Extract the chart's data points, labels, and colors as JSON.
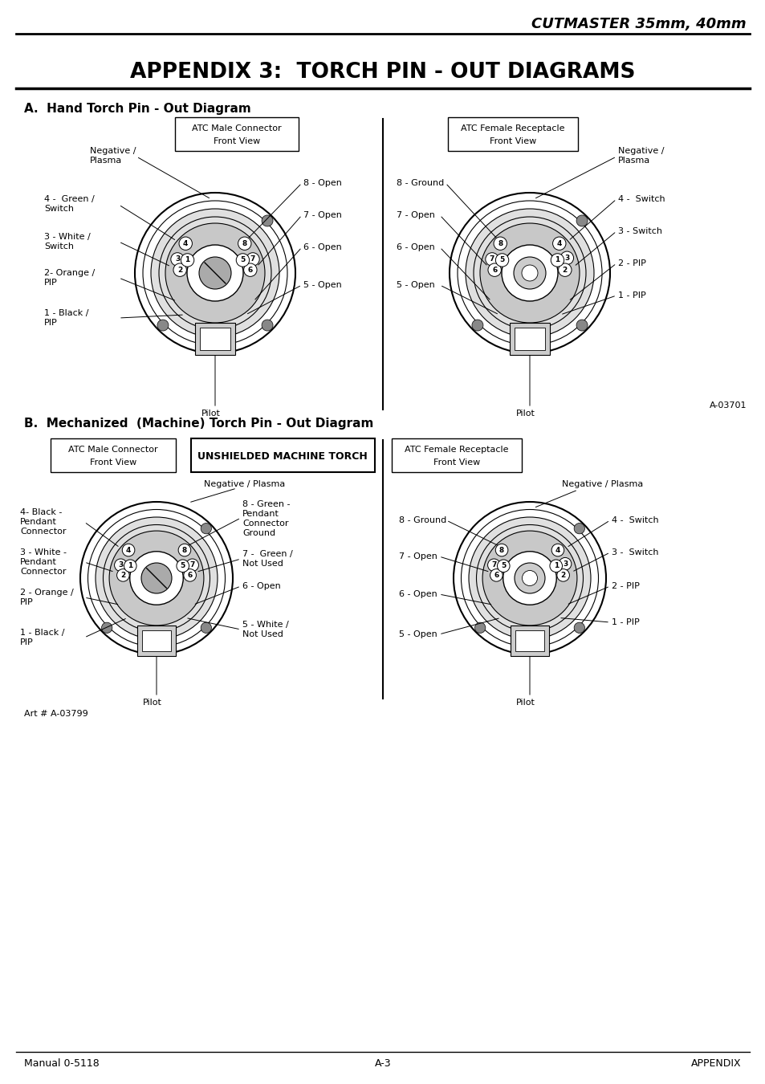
{
  "page_title": "CUTMASTER 35mm, 40mm",
  "main_title": "APPENDIX 3:  TORCH PIN - OUT DIAGRAMS",
  "section_a_title": "A.  Hand Torch Pin - Out Diagram",
  "section_b_title": "B.  Mechanized  (Machine) Torch Pin - Out Diagram",
  "footer_left": "Manual 0-5118",
  "footer_center": "A-3",
  "footer_right": "APPENDIX",
  "art_number": "Art # A-03799",
  "ref_number": "A-03701",
  "bg_color": "#ffffff",
  "text_color": "#000000",
  "line_color": "#000000"
}
